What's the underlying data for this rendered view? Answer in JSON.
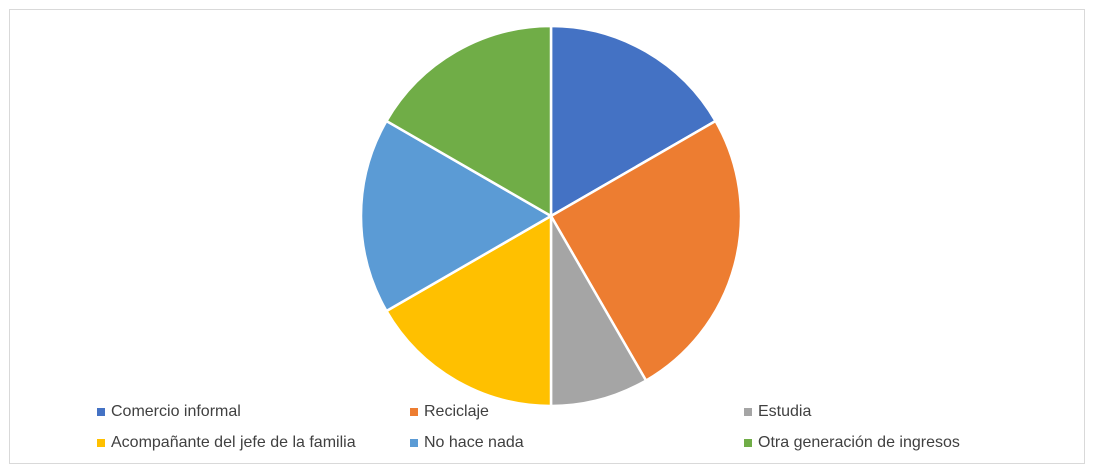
{
  "chart_data": {
    "type": "pie",
    "title": "",
    "categories": [
      "Comercio informal",
      "Reciclaje",
      "Estudia",
      "Acompañante del jefe de la familia",
      "No hace nada",
      "Otra generación de ingresos"
    ],
    "values": [
      2,
      3,
      1,
      2,
      2,
      2
    ],
    "colors": [
      "#4472c4",
      "#ed7d31",
      "#a5a5a5",
      "#ffc000",
      "#5b9bd5",
      "#70ad47"
    ],
    "start_angle_deg": 0,
    "direction": "clockwise",
    "legend": "bottom"
  }
}
